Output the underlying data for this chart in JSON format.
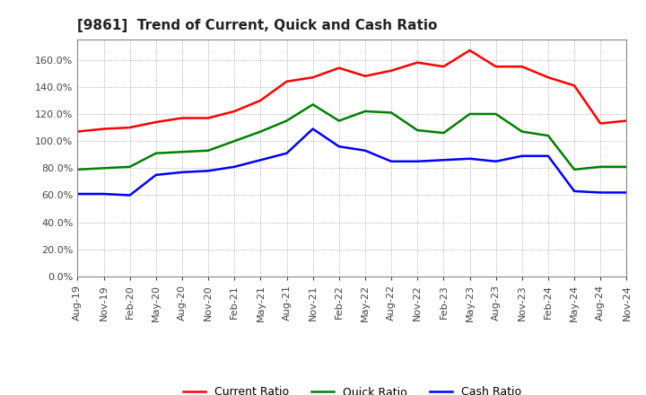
{
  "title": "[9861]  Trend of Current, Quick and Cash Ratio",
  "labels": [
    "Aug-19",
    "Nov-19",
    "Feb-20",
    "May-20",
    "Aug-20",
    "Nov-20",
    "Feb-21",
    "May-21",
    "Aug-21",
    "Nov-21",
    "Feb-22",
    "May-22",
    "Aug-22",
    "Nov-22",
    "Feb-23",
    "May-23",
    "Aug-23",
    "Nov-23",
    "Feb-24",
    "May-24",
    "Aug-24",
    "Nov-24"
  ],
  "current_ratio": [
    107,
    109,
    110,
    114,
    117,
    117,
    122,
    130,
    144,
    147,
    154,
    148,
    152,
    158,
    155,
    167,
    155,
    155,
    147,
    141,
    113,
    115
  ],
  "quick_ratio": [
    79,
    80,
    81,
    91,
    92,
    93,
    100,
    107,
    115,
    127,
    115,
    122,
    121,
    108,
    106,
    120,
    120,
    107,
    104,
    79,
    81,
    81
  ],
  "cash_ratio": [
    61,
    61,
    60,
    75,
    77,
    78,
    81,
    86,
    91,
    109,
    96,
    93,
    85,
    85,
    86,
    87,
    85,
    89,
    89,
    63,
    62,
    62
  ],
  "current_color": "#FF0000",
  "quick_color": "#008000",
  "cash_color": "#0000FF",
  "line_width": 1.8,
  "background_color": "#FFFFFF",
  "plot_bg_color": "#FFFFFF",
  "grid_color": "#999999",
  "ylim": [
    0,
    175
  ],
  "yticks": [
    0,
    20,
    40,
    60,
    80,
    100,
    120,
    140,
    160
  ],
  "legend_labels": [
    "Current Ratio",
    "Quick Ratio",
    "Cash Ratio"
  ]
}
